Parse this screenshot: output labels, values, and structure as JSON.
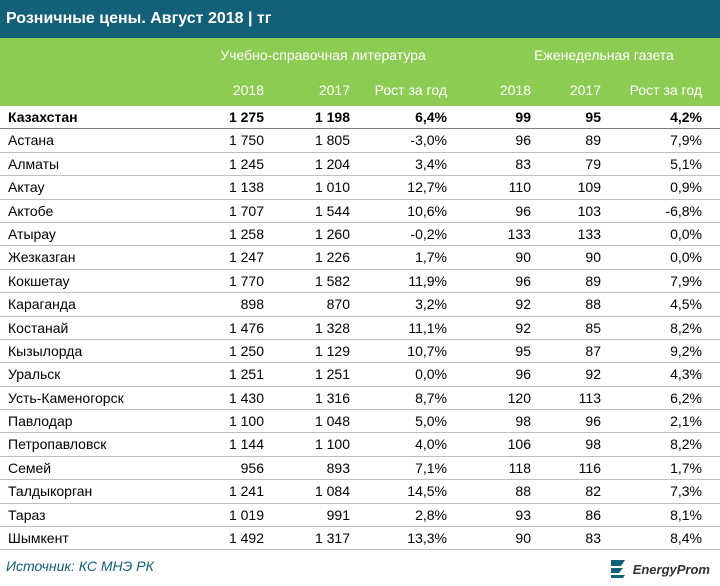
{
  "title": "Розничные цены. Август 2018 | тг",
  "groups": {
    "g1": "Учебно-справочная литература",
    "g2": "Еженедельная газета"
  },
  "columns": [
    "2018",
    "2017",
    "Рост за год",
    "2018",
    "2017",
    "Рост за год"
  ],
  "rows": [
    {
      "region": "Казахстан",
      "v": [
        "1 275",
        "1 198",
        "6,4%",
        "99",
        "95",
        "4,2%"
      ]
    },
    {
      "region": "Астана",
      "v": [
        "1 750",
        "1 805",
        "-3,0%",
        "96",
        "89",
        "7,9%"
      ]
    },
    {
      "region": "Алматы",
      "v": [
        "1 245",
        "1 204",
        "3,4%",
        "83",
        "79",
        "5,1%"
      ]
    },
    {
      "region": "Актау",
      "v": [
        "1 138",
        "1 010",
        "12,7%",
        "110",
        "109",
        "0,9%"
      ]
    },
    {
      "region": "Актобе",
      "v": [
        "1 707",
        "1 544",
        "10,6%",
        "96",
        "103",
        "-6,8%"
      ]
    },
    {
      "region": "Атырау",
      "v": [
        "1 258",
        "1 260",
        "-0,2%",
        "133",
        "133",
        "0,0%"
      ]
    },
    {
      "region": "Жезказган",
      "v": [
        "1 247",
        "1 226",
        "1,7%",
        "90",
        "90",
        "0,0%"
      ]
    },
    {
      "region": "Кокшетау",
      "v": [
        "1 770",
        "1 582",
        "11,9%",
        "96",
        "89",
        "7,9%"
      ]
    },
    {
      "region": "Караганда",
      "v": [
        "898",
        "870",
        "3,2%",
        "92",
        "88",
        "4,5%"
      ]
    },
    {
      "region": "Костанай",
      "v": [
        "1 476",
        "1 328",
        "11,1%",
        "92",
        "85",
        "8,2%"
      ]
    },
    {
      "region": "Кызылорда",
      "v": [
        "1 250",
        "1 129",
        "10,7%",
        "95",
        "87",
        "9,2%"
      ]
    },
    {
      "region": "Уральск",
      "v": [
        "1 251",
        "1 251",
        "0,0%",
        "96",
        "92",
        "4,3%"
      ]
    },
    {
      "region": "Усть-Каменогорск",
      "v": [
        "1 430",
        "1 316",
        "8,7%",
        "120",
        "113",
        "6,2%"
      ]
    },
    {
      "region": "Павлодар",
      "v": [
        "1 100",
        "1 048",
        "5,0%",
        "98",
        "96",
        "2,1%"
      ]
    },
    {
      "region": "Петропавловск",
      "v": [
        "1 144",
        "1 100",
        "4,0%",
        "106",
        "98",
        "8,2%"
      ]
    },
    {
      "region": "Семей",
      "v": [
        "956",
        "893",
        "7,1%",
        "118",
        "116",
        "1,7%"
      ]
    },
    {
      "region": "Талдыкорган",
      "v": [
        "1 241",
        "1 084",
        "14,5%",
        "88",
        "82",
        "7,3%"
      ]
    },
    {
      "region": "Тараз",
      "v": [
        "1 019",
        "991",
        "2,8%",
        "93",
        "86",
        "8,1%"
      ]
    },
    {
      "region": "Шымкент",
      "v": [
        "1 492",
        "1 317",
        "13,3%",
        "90",
        "83",
        "8,4%"
      ]
    }
  ],
  "source": "Источник: КС МНЭ РК",
  "logo_text": "EnergyProm",
  "colors": {
    "title_bg": "#136079",
    "header_bg": "#8ccc53",
    "logo_accent": "#136079"
  }
}
